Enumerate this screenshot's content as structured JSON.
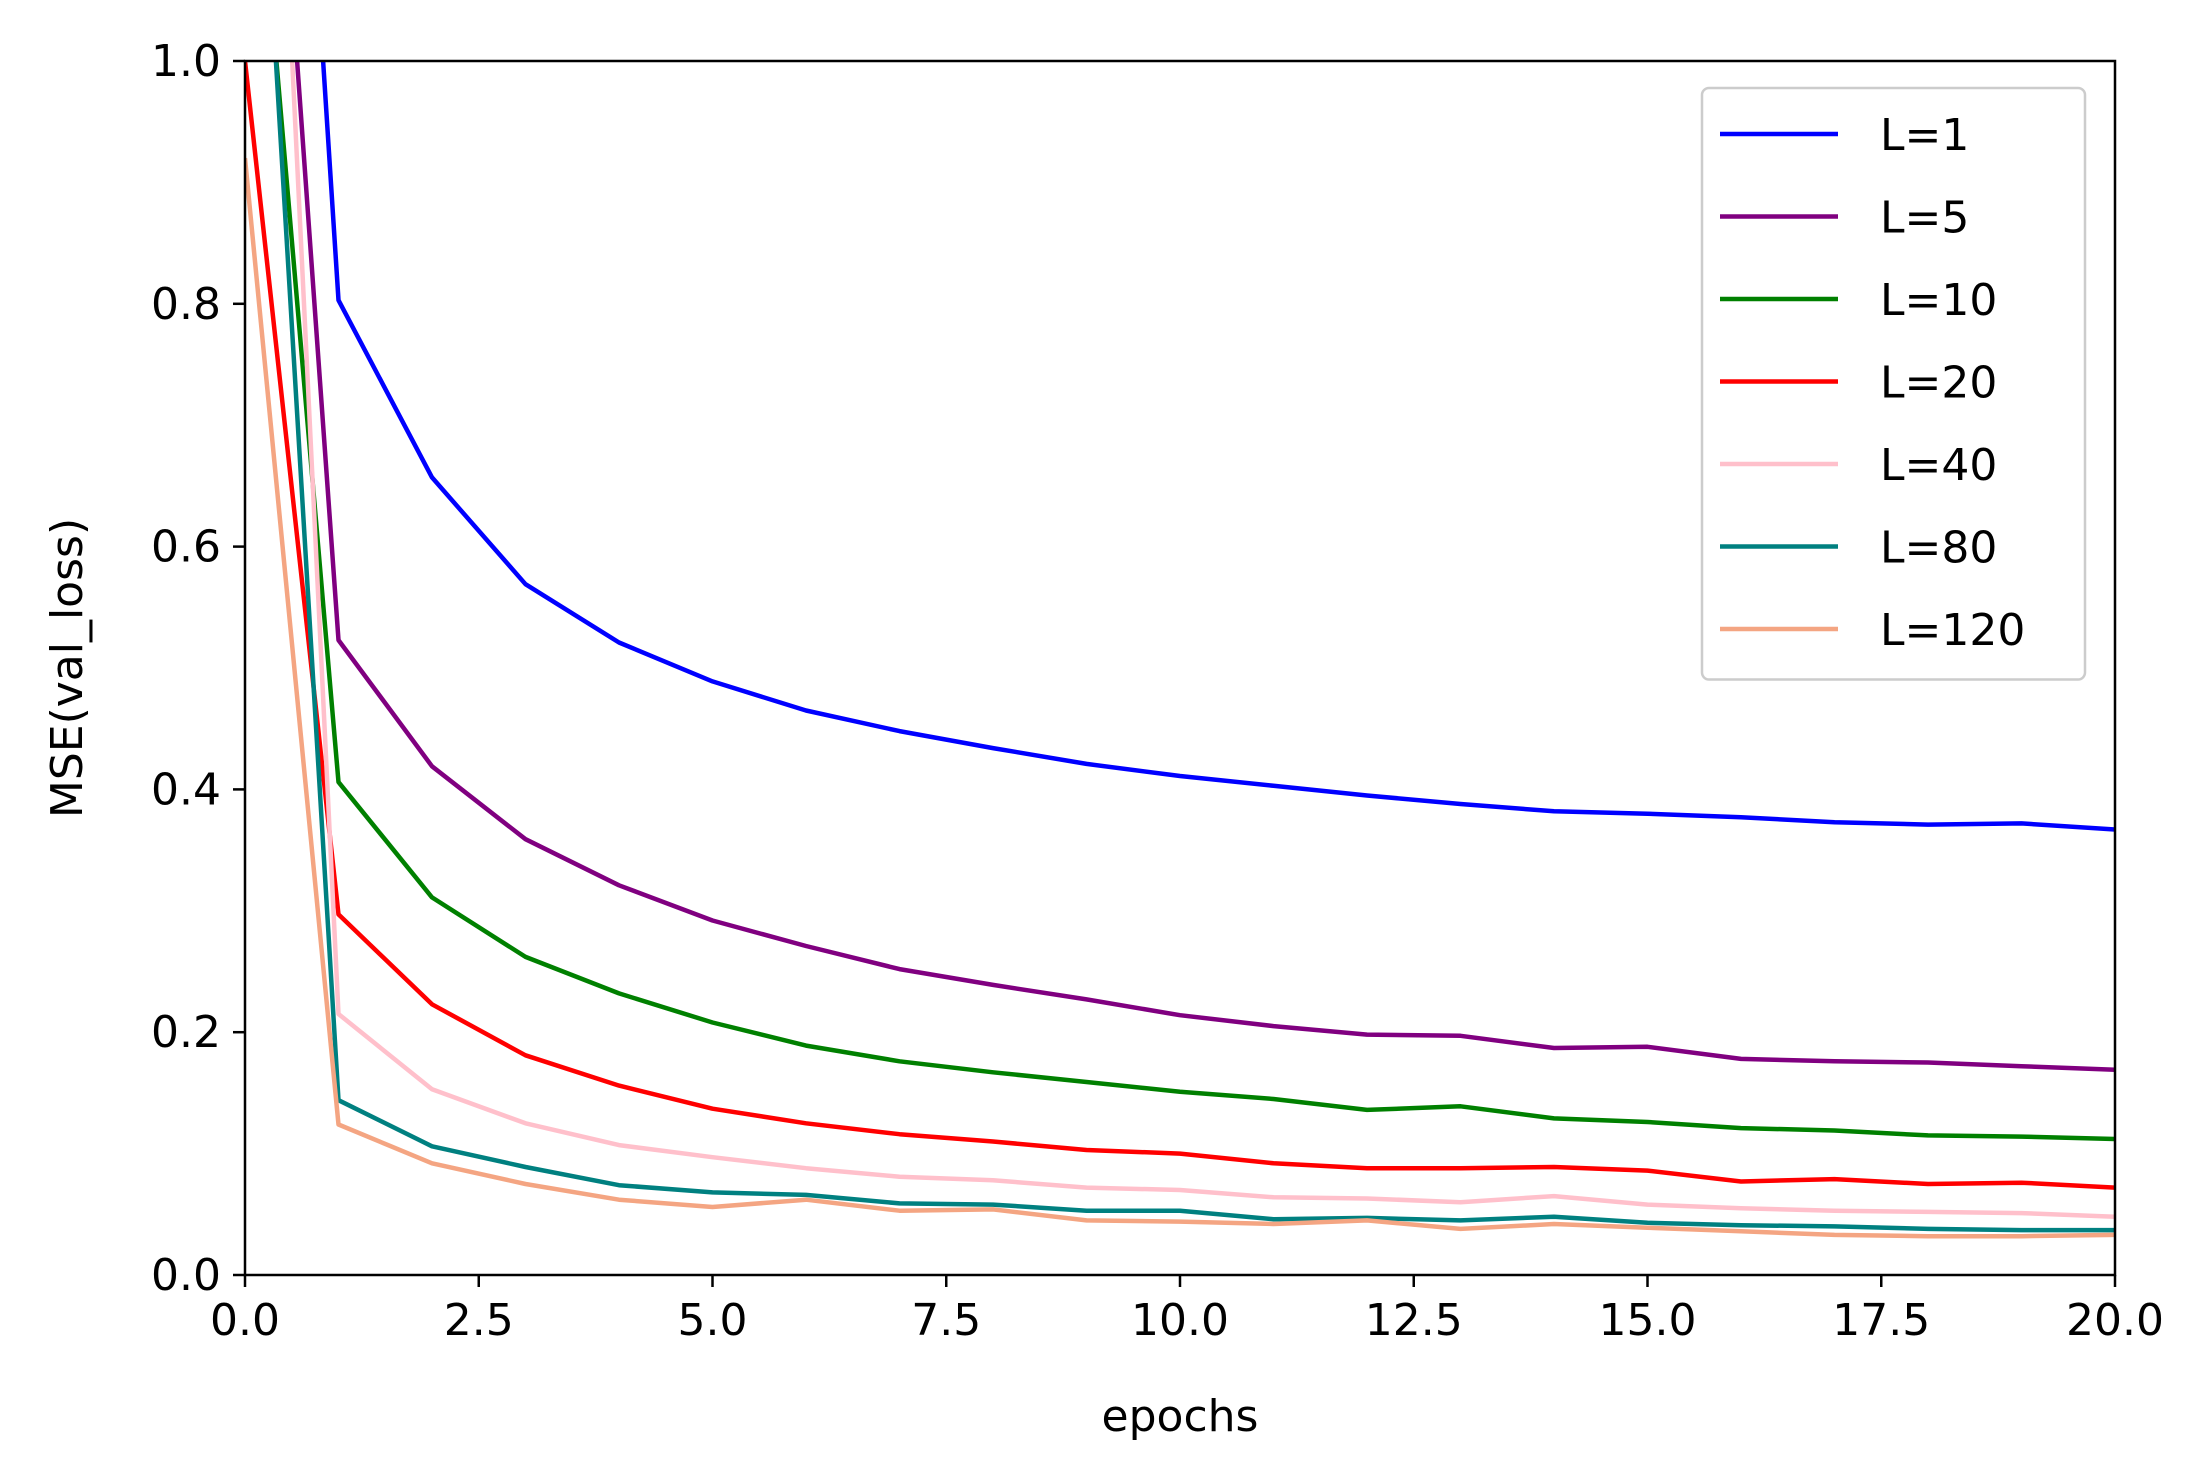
{
  "chart_data": {
    "type": "line",
    "title": "",
    "xlabel": "epochs",
    "ylabel": "MSE(val_loss)",
    "xlim": [
      0,
      20
    ],
    "ylim": [
      0,
      1
    ],
    "x_ticks": [
      0,
      2.5,
      5,
      7.5,
      10,
      12.5,
      15,
      17.5,
      20
    ],
    "x_tick_labels": [
      "0.0",
      "2.5",
      "5.0",
      "7.5",
      "10.0",
      "12.5",
      "15.0",
      "17.5",
      "20.0"
    ],
    "y_ticks": [
      0,
      0.2,
      0.4,
      0.6,
      0.8,
      1.0
    ],
    "y_tick_labels": [
      "0.0",
      "0.2",
      "0.4",
      "0.6",
      "0.8",
      "1.0"
    ],
    "grid": false,
    "legend_position": "top-right",
    "series": [
      {
        "name": "L=1",
        "color": "#0000ff",
        "x": [
          0,
          1,
          2,
          3,
          4,
          5,
          6,
          7,
          8,
          9,
          10,
          11,
          12,
          13,
          14,
          15,
          16,
          17,
          18,
          19,
          20
        ],
        "values": [
          2.0,
          0.803,
          0.657,
          0.569,
          0.521,
          0.489,
          0.465,
          0.448,
          0.434,
          0.421,
          0.411,
          0.403,
          0.395,
          0.388,
          0.382,
          0.38,
          0.377,
          0.373,
          0.371,
          0.372,
          0.367
        ]
      },
      {
        "name": "L=5",
        "color": "#800080",
        "x": [
          0,
          1,
          2,
          3,
          4,
          5,
          6,
          7,
          8,
          9,
          10,
          11,
          12,
          13,
          14,
          15,
          16,
          17,
          18,
          19,
          20
        ],
        "values": [
          1.6,
          0.523,
          0.419,
          0.359,
          0.321,
          0.292,
          0.271,
          0.252,
          0.239,
          0.227,
          0.214,
          0.205,
          0.198,
          0.197,
          0.187,
          0.188,
          0.178,
          0.176,
          0.175,
          0.172,
          0.169
        ]
      },
      {
        "name": "L=10",
        "color": "#008000",
        "x": [
          0,
          1,
          2,
          3,
          4,
          5,
          6,
          7,
          8,
          9,
          10,
          11,
          12,
          13,
          14,
          15,
          16,
          17,
          18,
          19,
          20
        ],
        "values": [
          1.3,
          0.406,
          0.311,
          0.262,
          0.232,
          0.208,
          0.189,
          0.176,
          0.167,
          0.159,
          0.151,
          0.145,
          0.136,
          0.139,
          0.129,
          0.126,
          0.121,
          0.119,
          0.115,
          0.114,
          0.112
        ]
      },
      {
        "name": "L=20",
        "color": "#ff0000",
        "x": [
          0,
          1,
          2,
          3,
          4,
          5,
          6,
          7,
          8,
          9,
          10,
          11,
          12,
          13,
          14,
          15,
          16,
          17,
          18,
          19,
          20
        ],
        "values": [
          1.0,
          0.297,
          0.223,
          0.181,
          0.156,
          0.137,
          0.125,
          0.116,
          0.11,
          0.103,
          0.1,
          0.092,
          0.088,
          0.088,
          0.089,
          0.086,
          0.077,
          0.079,
          0.075,
          0.076,
          0.072
        ]
      },
      {
        "name": "L=40",
        "color": "#ffc0cb",
        "x": [
          0,
          1,
          2,
          3,
          4,
          5,
          6,
          7,
          8,
          9,
          10,
          11,
          12,
          13,
          14,
          15,
          16,
          17,
          18,
          19,
          20
        ],
        "values": [
          1.8,
          0.215,
          0.153,
          0.125,
          0.107,
          0.097,
          0.088,
          0.081,
          0.078,
          0.072,
          0.07,
          0.064,
          0.063,
          0.06,
          0.065,
          0.058,
          0.055,
          0.053,
          0.052,
          0.051,
          0.048
        ]
      },
      {
        "name": "L=80",
        "color": "#008080",
        "x": [
          0,
          0.33,
          1,
          2,
          3,
          4,
          5,
          6,
          7,
          8,
          9,
          10,
          11,
          12,
          13,
          14,
          15,
          16,
          17,
          18,
          19,
          20
        ],
        "values": [
          2.0,
          1.0,
          0.144,
          0.106,
          0.089,
          0.074,
          0.068,
          0.066,
          0.059,
          0.058,
          0.053,
          0.053,
          0.046,
          0.047,
          0.045,
          0.048,
          0.043,
          0.041,
          0.04,
          0.038,
          0.037,
          0.037
        ]
      },
      {
        "name": "L=120",
        "color": "#f4a582",
        "x": [
          0,
          1,
          2,
          3,
          4,
          5,
          6,
          7,
          8,
          9,
          10,
          11,
          12,
          13,
          14,
          15,
          16,
          17,
          18,
          19,
          20
        ],
        "values": [
          0.92,
          0.124,
          0.092,
          0.075,
          0.062,
          0.056,
          0.062,
          0.053,
          0.054,
          0.045,
          0.044,
          0.042,
          0.045,
          0.038,
          0.042,
          0.039,
          0.036,
          0.033,
          0.032,
          0.032,
          0.033
        ]
      }
    ]
  }
}
